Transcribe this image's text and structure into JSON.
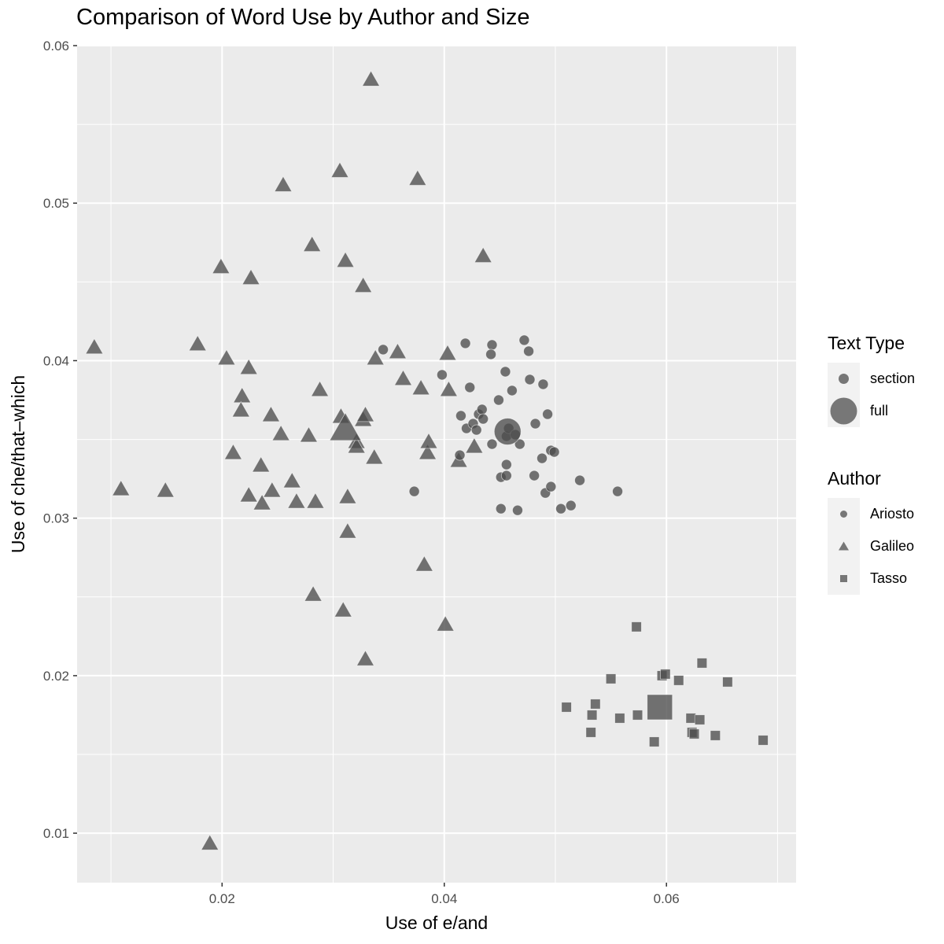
{
  "chart_data": {
    "type": "scatter",
    "title": "Comparison of Word Use by Author and Size",
    "xlabel": "Use of e/and",
    "ylabel": "Use of che/that–which",
    "xlim": [
      0.00695,
      0.07167
    ],
    "ylim": [
      0.00686,
      0.06
    ],
    "x_ticks": [
      0.02,
      0.04,
      0.06
    ],
    "x_tick_labels": [
      "0.02",
      "0.04",
      "0.06"
    ],
    "y_ticks": [
      0.01,
      0.02,
      0.03,
      0.04,
      0.05,
      0.06
    ],
    "y_tick_labels": [
      "0.01",
      "0.02",
      "0.03",
      "0.04",
      "0.05",
      "0.06"
    ],
    "grid": true,
    "legend_position": "right",
    "legends": [
      {
        "title": "Text Type",
        "entries": [
          {
            "label": "section",
            "size": "small"
          },
          {
            "label": "full",
            "size": "large"
          }
        ]
      },
      {
        "title": "Author",
        "entries": [
          {
            "label": "Ariosto",
            "shape": "circle"
          },
          {
            "label": "Galileo",
            "shape": "triangle"
          },
          {
            "label": "Tasso",
            "shape": "square"
          }
        ]
      }
    ],
    "series": [
      {
        "name": "Galileo",
        "shape": "triangle",
        "full": [
          {
            "x": 0.0311,
            "y": 0.0356
          }
        ],
        "section": [
          [
            0.0085,
            0.0408
          ],
          [
            0.0109,
            0.0318
          ],
          [
            0.0149,
            0.0317
          ],
          [
            0.0189,
            0.0093
          ],
          [
            0.0178,
            0.041
          ],
          [
            0.0199,
            0.0459
          ],
          [
            0.0204,
            0.0401
          ],
          [
            0.0218,
            0.0377
          ],
          [
            0.0217,
            0.0368
          ],
          [
            0.021,
            0.0341
          ],
          [
            0.0224,
            0.0395
          ],
          [
            0.0224,
            0.0314
          ],
          [
            0.0226,
            0.0452
          ],
          [
            0.0235,
            0.0333
          ],
          [
            0.0236,
            0.0309
          ],
          [
            0.0244,
            0.0365
          ],
          [
            0.0245,
            0.0317
          ],
          [
            0.0253,
            0.0353
          ],
          [
            0.0263,
            0.0323
          ],
          [
            0.0255,
            0.0511
          ],
          [
            0.0267,
            0.031
          ],
          [
            0.0278,
            0.0352
          ],
          [
            0.0284,
            0.031
          ],
          [
            0.0281,
            0.0473
          ],
          [
            0.0288,
            0.0381
          ],
          [
            0.0282,
            0.0251
          ],
          [
            0.0306,
            0.052
          ],
          [
            0.0307,
            0.0364
          ],
          [
            0.0309,
            0.0241
          ],
          [
            0.0311,
            0.0463
          ],
          [
            0.0313,
            0.0313
          ],
          [
            0.0313,
            0.0291
          ],
          [
            0.0321,
            0.0348
          ],
          [
            0.0321,
            0.0345
          ],
          [
            0.0327,
            0.0447
          ],
          [
            0.0327,
            0.0362
          ],
          [
            0.0329,
            0.0365
          ],
          [
            0.0329,
            0.021
          ],
          [
            0.0334,
            0.0578
          ],
          [
            0.0337,
            0.0338
          ],
          [
            0.0338,
            0.0401
          ],
          [
            0.0358,
            0.0405
          ],
          [
            0.0363,
            0.0388
          ],
          [
            0.0376,
            0.0515
          ],
          [
            0.0379,
            0.0382
          ],
          [
            0.0382,
            0.027
          ],
          [
            0.0385,
            0.0341
          ],
          [
            0.0386,
            0.0348
          ],
          [
            0.0401,
            0.0232
          ],
          [
            0.0403,
            0.0404
          ],
          [
            0.0404,
            0.0381
          ],
          [
            0.0413,
            0.0336
          ],
          [
            0.0427,
            0.0345
          ],
          [
            0.0435,
            0.0466
          ]
        ]
      },
      {
        "name": "Ariosto",
        "shape": "circle",
        "full": [
          {
            "x": 0.0457,
            "y": 0.0355
          }
        ],
        "section": [
          [
            0.0345,
            0.0407
          ],
          [
            0.0373,
            0.0317
          ],
          [
            0.0398,
            0.0391
          ],
          [
            0.0415,
            0.0365
          ],
          [
            0.0414,
            0.034
          ],
          [
            0.0419,
            0.0411
          ],
          [
            0.042,
            0.0357
          ],
          [
            0.0423,
            0.0383
          ],
          [
            0.0426,
            0.036
          ],
          [
            0.0429,
            0.0356
          ],
          [
            0.0431,
            0.0366
          ],
          [
            0.0434,
            0.0369
          ],
          [
            0.0435,
            0.0363
          ],
          [
            0.0443,
            0.041
          ],
          [
            0.0442,
            0.0404
          ],
          [
            0.0443,
            0.0347
          ],
          [
            0.0449,
            0.0375
          ],
          [
            0.0451,
            0.0306
          ],
          [
            0.0451,
            0.0326
          ],
          [
            0.0455,
            0.0393
          ],
          [
            0.0456,
            0.0334
          ],
          [
            0.0456,
            0.0327
          ],
          [
            0.0456,
            0.0352
          ],
          [
            0.0458,
            0.0357
          ],
          [
            0.0461,
            0.0381
          ],
          [
            0.0464,
            0.0353
          ],
          [
            0.0466,
            0.0305
          ],
          [
            0.0468,
            0.0347
          ],
          [
            0.0472,
            0.0413
          ],
          [
            0.0476,
            0.0406
          ],
          [
            0.0477,
            0.0388
          ],
          [
            0.0481,
            0.0327
          ],
          [
            0.0482,
            0.036
          ],
          [
            0.0488,
            0.0338
          ],
          [
            0.0489,
            0.0385
          ],
          [
            0.0491,
            0.0316
          ],
          [
            0.0493,
            0.0366
          ],
          [
            0.0496,
            0.0343
          ],
          [
            0.0496,
            0.032
          ],
          [
            0.0499,
            0.0342
          ],
          [
            0.0505,
            0.0306
          ],
          [
            0.0514,
            0.0308
          ],
          [
            0.0522,
            0.0324
          ],
          [
            0.0556,
            0.0317
          ]
        ]
      },
      {
        "name": "Tasso",
        "shape": "square",
        "full": [
          {
            "x": 0.0594,
            "y": 0.018
          }
        ],
        "section": [
          [
            0.051,
            0.018
          ],
          [
            0.0532,
            0.0164
          ],
          [
            0.0533,
            0.0175
          ],
          [
            0.0536,
            0.0182
          ],
          [
            0.055,
            0.0198
          ],
          [
            0.0558,
            0.0173
          ],
          [
            0.0573,
            0.0231
          ],
          [
            0.0574,
            0.0175
          ],
          [
            0.0589,
            0.0158
          ],
          [
            0.0596,
            0.02
          ],
          [
            0.0599,
            0.0201
          ],
          [
            0.0611,
            0.0197
          ],
          [
            0.0622,
            0.0173
          ],
          [
            0.0623,
            0.0164
          ],
          [
            0.0625,
            0.0163
          ],
          [
            0.063,
            0.0172
          ],
          [
            0.0632,
            0.0208
          ],
          [
            0.0644,
            0.0162
          ],
          [
            0.0655,
            0.0196
          ],
          [
            0.0687,
            0.0159
          ]
        ]
      }
    ]
  },
  "legend": {
    "text_type_title": "Text Type",
    "section_label": "section",
    "full_label": "full",
    "author_title": "Author",
    "ariosto_label": "Ariosto",
    "galileo_label": "Galileo",
    "tasso_label": "Tasso"
  },
  "colors": {
    "panel_bg": "#ebebeb",
    "grid": "#ffffff",
    "point_fill": "#4d4d4d",
    "legend_key_bg": "#f2f2f2"
  }
}
